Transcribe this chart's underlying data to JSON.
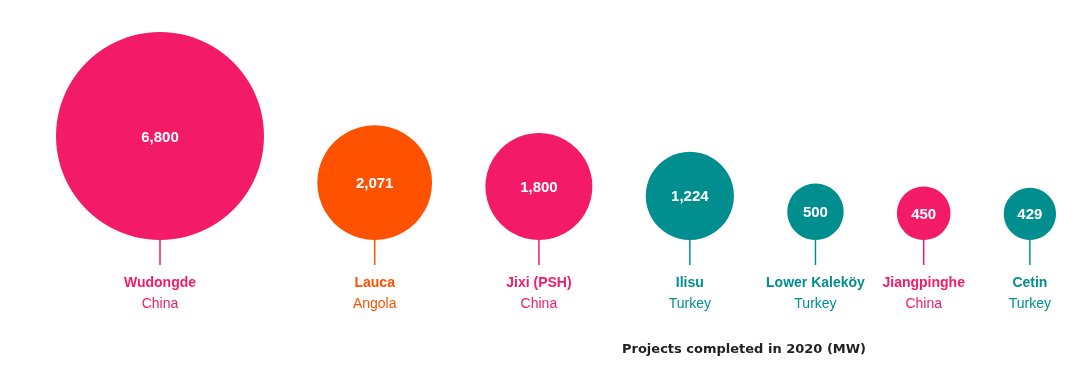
{
  "chart_data": {
    "type": "other",
    "value_labels": [
      "6,800",
      "2,071",
      "1,800",
      "1,224",
      "500",
      "450",
      "429"
    ],
    "categories": [
      "Wudongde\nChina",
      "Lauca\nAngola",
      "Jixi (PSH)\nChina",
      "Ilisu\nTurkey",
      "Lower Kaleköy\nTurkey",
      "Jiangpinghe\nChina",
      "Cetin\nTurkey"
    ],
    "values": [
      6800,
      2071,
      1800,
      1224,
      500,
      450,
      429
    ],
    "colors": [
      "#f31b68",
      "#ff5200",
      "#f31b68",
      "#008e8e",
      "#008e8e",
      "#f31b68",
      "#008e8e"
    ],
    "xlabel": "Projects completed in 2020 (MW)"
  }
}
